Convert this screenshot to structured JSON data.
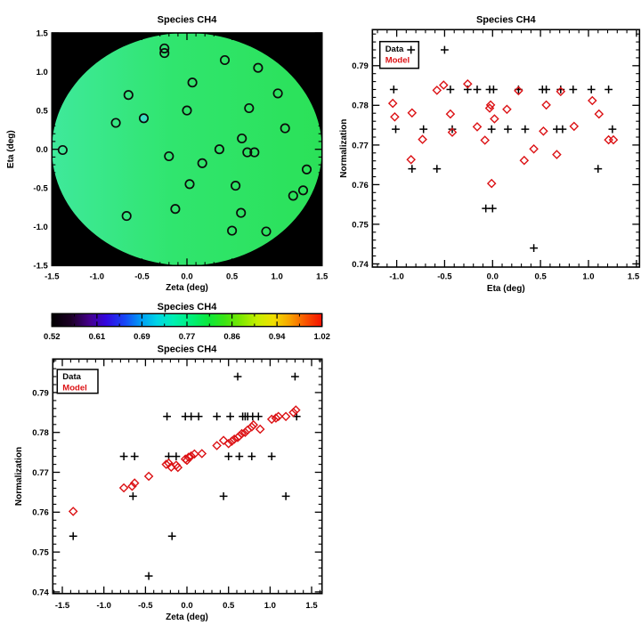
{
  "figure": {
    "background": "#ffffff",
    "data_color": "#000000",
    "model_color": "#dc1215"
  },
  "chart_data": [
    {
      "id": "map",
      "type": "scatter",
      "title": "Species CH4",
      "xlabel": "Zeta (deg)",
      "ylabel": "Eta (deg)",
      "xlim": [
        -1.5,
        1.5
      ],
      "ylim": [
        -1.5,
        1.5
      ],
      "xtick_values": [
        -1.5,
        -1.0,
        -0.5,
        0.0,
        0.5,
        1.0,
        1.5
      ],
      "xtick_labels": [
        "-1.5",
        "-1.0",
        "-0.5",
        "0.0",
        "0.5",
        "1.0",
        "1.5"
      ],
      "ytick_values": [
        -1.5,
        -1.0,
        -0.5,
        0.0,
        0.5,
        1.0,
        1.5
      ],
      "ytick_labels": [
        "-1.5",
        "-1.0",
        "-0.5",
        "0.0",
        "0.5",
        "1.0",
        "1.5"
      ],
      "minor_step_x": 0.1,
      "minor_step_y": 0.1,
      "panel_background": "#000000",
      "disk_gradient": [
        [
          "0%",
          "#3fe99b"
        ],
        [
          "45%",
          "#30e56e"
        ],
        [
          "100%",
          "#2be158"
        ]
      ],
      "marker_color": "#0b0b0b",
      "points": [
        [
          -0.25,
          1.3
        ],
        [
          -0.25,
          1.24
        ],
        [
          0.42,
          1.15
        ],
        [
          0.79,
          1.05
        ],
        [
          0.06,
          0.86
        ],
        [
          -0.65,
          0.7
        ],
        [
          1.01,
          0.72
        ],
        [
          0.0,
          0.5
        ],
        [
          0.69,
          0.53
        ],
        [
          -0.48,
          0.4
        ],
        [
          -0.79,
          0.34
        ],
        [
          1.09,
          0.27
        ],
        [
          0.61,
          0.14
        ],
        [
          0.36,
          0.0
        ],
        [
          -1.38,
          -0.01
        ],
        [
          0.67,
          -0.04
        ],
        [
          0.75,
          -0.04
        ],
        [
          -0.2,
          -0.09
        ],
        [
          0.17,
          -0.18
        ],
        [
          1.33,
          -0.26
        ],
        [
          0.03,
          -0.45
        ],
        [
          0.54,
          -0.47
        ],
        [
          1.29,
          -0.53
        ],
        [
          1.18,
          -0.6
        ],
        [
          -0.13,
          -0.77
        ],
        [
          -0.67,
          -0.86
        ],
        [
          0.6,
          -0.82
        ],
        [
          0.5,
          -1.05
        ],
        [
          0.88,
          -1.06
        ]
      ],
      "highlight_point": {
        "index": 9,
        "fill": "#3adfc4"
      }
    },
    {
      "id": "eta_scatter",
      "type": "scatter",
      "title": "Species CH4",
      "xlabel": "Eta (deg)",
      "ylabel": "Normalization",
      "xlim": [
        -1.253,
        1.532
      ],
      "ylim": [
        0.7392,
        0.7991
      ],
      "xtick_values": [
        -1.0,
        -0.5,
        0.0,
        0.5,
        1.0,
        1.5
      ],
      "xtick_labels": [
        "-1.0",
        "-0.5",
        "0.0",
        "0.5",
        "1.0",
        "1.5"
      ],
      "ytick_values": [
        0.74,
        0.75,
        0.76,
        0.77,
        0.78,
        0.79
      ],
      "ytick_labels": [
        "0.74",
        "0.75",
        "0.76",
        "0.77",
        "0.78",
        "0.79"
      ],
      "minor_step_x": 0.1,
      "minor_step_y": 0.002,
      "legend": {
        "entries": [
          {
            "label": "Data",
            "color": "#000000"
          },
          {
            "label": "Model",
            "color": "#dc1215"
          }
        ]
      },
      "series": [
        {
          "name": "data",
          "marker": "plus",
          "color": "#000000",
          "points": [
            [
              -0.85,
              0.794
            ],
            [
              -0.5,
              0.794
            ],
            [
              -1.03,
              0.784
            ],
            [
              -0.44,
              0.784
            ],
            [
              -0.26,
              0.784
            ],
            [
              -0.16,
              0.784
            ],
            [
              -0.03,
              0.784
            ],
            [
              0.01,
              0.784
            ],
            [
              0.27,
              0.784
            ],
            [
              0.52,
              0.784
            ],
            [
              0.56,
              0.784
            ],
            [
              0.71,
              0.784
            ],
            [
              0.84,
              0.784
            ],
            [
              1.03,
              0.784
            ],
            [
              1.21,
              0.784
            ],
            [
              -1.01,
              0.774
            ],
            [
              -0.72,
              0.774
            ],
            [
              -0.42,
              0.774
            ],
            [
              -0.01,
              0.774
            ],
            [
              0.16,
              0.774
            ],
            [
              0.34,
              0.774
            ],
            [
              0.67,
              0.774
            ],
            [
              0.73,
              0.774
            ],
            [
              1.25,
              0.774
            ],
            [
              -0.84,
              0.764
            ],
            [
              -0.58,
              0.764
            ],
            [
              1.1,
              0.764
            ],
            [
              -0.07,
              0.754
            ],
            [
              0.0,
              0.754
            ],
            [
              0.43,
              0.744
            ]
          ]
        },
        {
          "name": "model",
          "marker": "diamond",
          "color": "#dc1215",
          "points": [
            [
              -1.04,
              0.7805
            ],
            [
              -1.02,
              0.7771
            ],
            [
              -0.84,
              0.7781
            ],
            [
              -0.85,
              0.7663
            ],
            [
              -0.73,
              0.7714
            ],
            [
              -0.58,
              0.7838
            ],
            [
              -0.51,
              0.7851
            ],
            [
              -0.44,
              0.7778
            ],
            [
              -0.42,
              0.7732
            ],
            [
              -0.26,
              0.7854
            ],
            [
              -0.16,
              0.7746
            ],
            [
              -0.08,
              0.7712
            ],
            [
              -0.02,
              0.7801
            ],
            [
              -0.03,
              0.7793
            ],
            [
              0.02,
              0.7766
            ],
            [
              -0.01,
              0.7603
            ],
            [
              0.15,
              0.779
            ],
            [
              0.27,
              0.7837
            ],
            [
              0.33,
              0.7661
            ],
            [
              0.43,
              0.769
            ],
            [
              0.53,
              0.7735
            ],
            [
              0.56,
              0.7801
            ],
            [
              0.67,
              0.7676
            ],
            [
              0.71,
              0.7835
            ],
            [
              0.85,
              0.7747
            ],
            [
              1.04,
              0.7812
            ],
            [
              1.11,
              0.7778
            ],
            [
              1.21,
              0.7713
            ],
            [
              1.26,
              0.7713
            ]
          ]
        }
      ]
    },
    {
      "id": "colorbar",
      "type": "colorbar",
      "title": "Species CH4",
      "tick_labels": [
        "0.52",
        "0.61",
        "0.69",
        "0.77",
        "0.86",
        "0.94",
        "1.02"
      ],
      "gradient": [
        [
          "0%",
          "#000000"
        ],
        [
          "7%",
          "#1c0026"
        ],
        [
          "14%",
          "#45008d"
        ],
        [
          "20%",
          "#3306df"
        ],
        [
          "27%",
          "#1747f7"
        ],
        [
          "33%",
          "#009df5"
        ],
        [
          "39%",
          "#00d5e6"
        ],
        [
          "45%",
          "#00f0b2"
        ],
        [
          "52%",
          "#00ef75"
        ],
        [
          "58%",
          "#0ce73b"
        ],
        [
          "64%",
          "#3ce414"
        ],
        [
          "70%",
          "#7ee800"
        ],
        [
          "76%",
          "#c6ef00"
        ],
        [
          "82%",
          "#f0df00"
        ],
        [
          "88%",
          "#f8a300"
        ],
        [
          "94%",
          "#f85300"
        ],
        [
          "100%",
          "#f51000"
        ]
      ]
    },
    {
      "id": "zeta_scatter",
      "type": "scatter",
      "title": "Species CH4",
      "xlabel": "Zeta (deg)",
      "ylabel": "Normalization",
      "xlim": [
        -1.615,
        1.625
      ],
      "ylim": [
        0.7396,
        0.7984
      ],
      "xtick_values": [
        -1.5,
        -1.0,
        -0.5,
        0.0,
        0.5,
        1.0,
        1.5
      ],
      "xtick_labels": [
        "-1.5",
        "-1.0",
        "-0.5",
        "0.0",
        "0.5",
        "1.0",
        "1.5"
      ],
      "ytick_values": [
        0.74,
        0.75,
        0.76,
        0.77,
        0.78,
        0.79
      ],
      "ytick_labels": [
        "0.74",
        "0.75",
        "0.76",
        "0.77",
        "0.78",
        "0.79"
      ],
      "minor_step_x": 0.1,
      "minor_step_y": 0.002,
      "legend": {
        "entries": [
          {
            "label": "Data",
            "color": "#000000"
          },
          {
            "label": "Model",
            "color": "#dc1215"
          }
        ]
      },
      "series": [
        {
          "name": "data",
          "marker": "plus",
          "color": "#000000",
          "points": [
            [
              0.61,
              0.794
            ],
            [
              1.3,
              0.794
            ],
            [
              -0.24,
              0.784
            ],
            [
              -0.02,
              0.784
            ],
            [
              0.05,
              0.784
            ],
            [
              0.14,
              0.784
            ],
            [
              0.36,
              0.784
            ],
            [
              0.52,
              0.784
            ],
            [
              0.67,
              0.784
            ],
            [
              0.7,
              0.784
            ],
            [
              0.73,
              0.784
            ],
            [
              0.79,
              0.784
            ],
            [
              0.86,
              0.784
            ],
            [
              1.32,
              0.784
            ],
            [
              -0.76,
              0.774
            ],
            [
              -0.63,
              0.774
            ],
            [
              -0.22,
              0.774
            ],
            [
              -0.13,
              0.774
            ],
            [
              0.5,
              0.774
            ],
            [
              0.63,
              0.774
            ],
            [
              0.78,
              0.774
            ],
            [
              1.02,
              0.774
            ],
            [
              -0.65,
              0.764
            ],
            [
              0.44,
              0.764
            ],
            [
              1.19,
              0.764
            ],
            [
              -1.37,
              0.754
            ],
            [
              -0.18,
              0.754
            ],
            [
              -0.46,
              0.744
            ]
          ]
        },
        {
          "name": "model",
          "marker": "diamond",
          "color": "#dc1215",
          "points": [
            [
              -1.37,
              0.7602
            ],
            [
              -0.76,
              0.7661
            ],
            [
              -0.66,
              0.7665
            ],
            [
              -0.63,
              0.7673
            ],
            [
              -0.46,
              0.769
            ],
            [
              -0.25,
              0.772
            ],
            [
              -0.22,
              0.7723
            ],
            [
              -0.19,
              0.7713
            ],
            [
              -0.13,
              0.7718
            ],
            [
              -0.11,
              0.7712
            ],
            [
              -0.02,
              0.7733
            ],
            [
              0.0,
              0.773
            ],
            [
              0.02,
              0.7738
            ],
            [
              0.05,
              0.7741
            ],
            [
              0.09,
              0.7746
            ],
            [
              0.18,
              0.7747
            ],
            [
              0.36,
              0.7767
            ],
            [
              0.44,
              0.778
            ],
            [
              0.5,
              0.7772
            ],
            [
              0.54,
              0.7778
            ],
            [
              0.57,
              0.7783
            ],
            [
              0.61,
              0.7787
            ],
            [
              0.63,
              0.7791
            ],
            [
              0.66,
              0.7797
            ],
            [
              0.7,
              0.78
            ],
            [
              0.73,
              0.7806
            ],
            [
              0.78,
              0.7814
            ],
            [
              0.8,
              0.7819
            ],
            [
              0.88,
              0.7808
            ],
            [
              1.02,
              0.7833
            ],
            [
              1.07,
              0.7836
            ],
            [
              1.1,
              0.784
            ],
            [
              1.19,
              0.784
            ],
            [
              1.28,
              0.785
            ],
            [
              1.31,
              0.7856
            ]
          ]
        }
      ]
    }
  ]
}
